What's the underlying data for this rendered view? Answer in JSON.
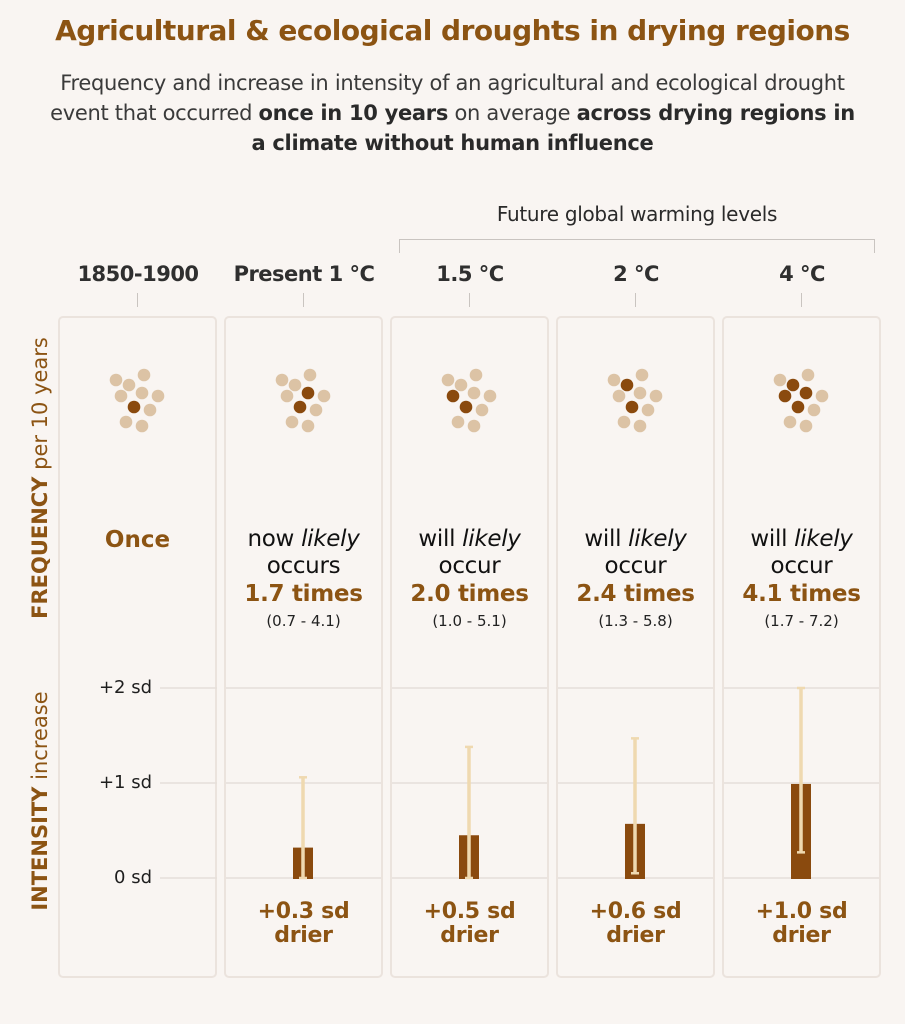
{
  "title": "Agricultural & ecological droughts in drying regions",
  "subtitle": {
    "part1": "Frequency and increase in intensity of an agricultural and ecological drought event that occurred ",
    "bold1": "once in 10 years",
    "part2": " on average ",
    "bold2": "across drying regions in a climate without human influence"
  },
  "future_label": "Future global warming levels",
  "row_labels": {
    "frequency_bold": "FREQUENCY",
    "frequency_rest": " per 10 years",
    "intensity_bold": "INTENSITY",
    "intensity_rest": " increase"
  },
  "colors": {
    "accent": "#8c5413",
    "dot_active": "#8a4a0e",
    "dot_inactive": "#dcc3a5",
    "bar": "#8a4a0e",
    "whisker": "#efd9b0",
    "grid": "#e6dfda"
  },
  "chart_data": {
    "type": "bar",
    "title": "Agricultural & ecological droughts in drying regions",
    "categories": [
      "1850-1900",
      "Present 1 °C",
      "1.5 °C",
      "2 °C",
      "4 °C"
    ],
    "frequency": {
      "label": "FREQUENCY per 10 years",
      "dots_total": 10,
      "values": [
        1,
        1.7,
        2.0,
        2.4,
        4.1
      ],
      "dots_highlighted": [
        1,
        2,
        2,
        2,
        4
      ],
      "text": [
        {
          "main": "Once"
        },
        {
          "l1a": "now ",
          "l1b": "likely",
          "l2": "occurs",
          "times": "1.7 times",
          "range": "(0.7 - 4.1)"
        },
        {
          "l1a": "will ",
          "l1b": "likely",
          "l2": "occur",
          "times": "2.0 times",
          "range": "(1.0 - 5.1)"
        },
        {
          "l1a": "will ",
          "l1b": "likely",
          "l2": "occur",
          "times": "2.4 times",
          "range": "(1.3 - 5.8)"
        },
        {
          "l1a": "will ",
          "l1b": "likely",
          "l2": "occur",
          "times": "4.1 times",
          "range": "(1.7 - 7.2)"
        }
      ]
    },
    "intensity": {
      "label": "INTENSITY increase",
      "ylabel_unit": "sd",
      "ylim": [
        0,
        2
      ],
      "yticks": [
        "+2 sd",
        "+1 sd",
        "0 sd"
      ],
      "ytick_values": [
        2,
        1,
        0
      ],
      "values": [
        null,
        0.3,
        0.5,
        0.6,
        1.0
      ],
      "bar_display": [
        null,
        0.32,
        0.45,
        0.57,
        0.99
      ],
      "error_low": [
        null,
        0.0,
        0.0,
        0.05,
        0.27
      ],
      "error_high": [
        null,
        1.06,
        1.38,
        1.47,
        2.0
      ],
      "value_labels": [
        null,
        "+0.3 sd",
        "+0.5 sd",
        "+0.6 sd",
        "+1.0 sd"
      ],
      "value_suffix": "drier"
    },
    "grid": true
  }
}
